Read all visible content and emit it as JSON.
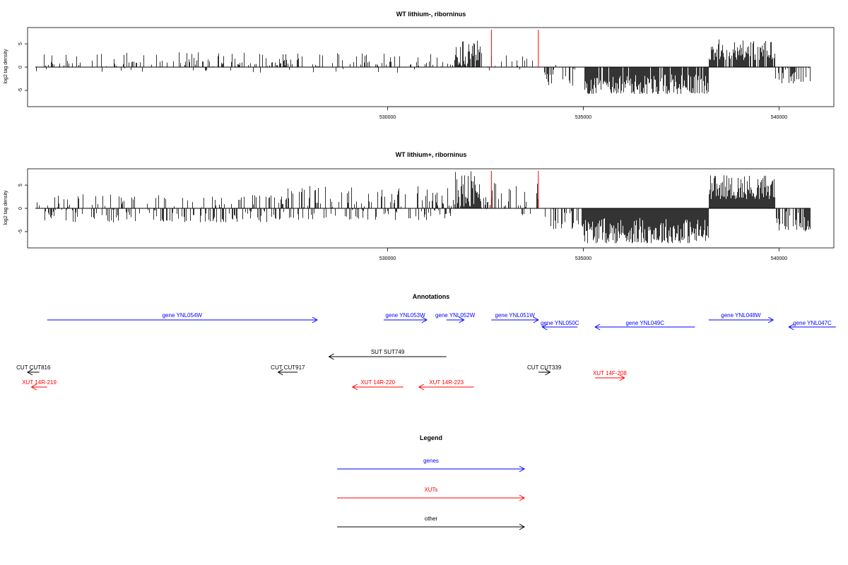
{
  "colors": {
    "gene": "#0000ff",
    "xut": "#ff0000",
    "other": "#000000",
    "marker": "#ff0000"
  },
  "chart_data": [
    {
      "type": "bar",
      "title": "WT lithium-, riborninus",
      "ylabel": "log2 tag density",
      "ylim": [
        -8.5,
        8.5
      ],
      "xlim": [
        520800,
        541400
      ],
      "yticks": [
        5,
        0,
        -5
      ],
      "xticks": [
        530000,
        535000,
        540000
      ],
      "xtick_labels": [
        "530000",
        "535000",
        "540000"
      ],
      "markers": [
        532650,
        533850
      ],
      "regions": [
        {
          "from": 521000,
          "to": 531700,
          "lo": -1.2,
          "hi": 3.2,
          "density": 0.28
        },
        {
          "from": 531700,
          "to": 532400,
          "lo": 0,
          "hi": 6.3,
          "density": 0.95
        },
        {
          "from": 532400,
          "to": 533900,
          "lo": -1,
          "hi": 2.8,
          "density": 0.15
        },
        {
          "from": 533900,
          "to": 535000,
          "lo": -4,
          "hi": 0.5,
          "density": 0.25
        },
        {
          "from": 535000,
          "to": 538200,
          "lo": -5.8,
          "hi": -1.5,
          "density": 0.9
        },
        {
          "from": 538200,
          "to": 539900,
          "lo": 1.5,
          "hi": 6,
          "density": 0.8
        },
        {
          "from": 539900,
          "to": 540800,
          "lo": -3.5,
          "hi": 0,
          "density": 0.45
        }
      ]
    },
    {
      "type": "bar",
      "title": "WT lithium+, riborninus",
      "ylabel": "log2 tag density",
      "ylim": [
        -8.5,
        8.5
      ],
      "xlim": [
        520800,
        541400
      ],
      "yticks": [
        5,
        0,
        -5
      ],
      "xticks": [
        530000,
        535000,
        540000
      ],
      "xtick_labels": [
        "530000",
        "535000",
        "540000"
      ],
      "markers": [
        532650,
        533850
      ],
      "regions": [
        {
          "from": 521000,
          "to": 527000,
          "lo": -3,
          "hi": 3,
          "density": 0.45
        },
        {
          "from": 527000,
          "to": 531700,
          "lo": -2.5,
          "hi": 5,
          "density": 0.55
        },
        {
          "from": 531700,
          "to": 532400,
          "lo": 0,
          "hi": 8,
          "density": 1
        },
        {
          "from": 532400,
          "to": 533900,
          "lo": -1.5,
          "hi": 5.5,
          "density": 0.35
        },
        {
          "from": 533900,
          "to": 535000,
          "lo": -4.5,
          "hi": 0.5,
          "density": 0.3
        },
        {
          "from": 535000,
          "to": 538200,
          "lo": -7.5,
          "hi": -2,
          "density": 1
        },
        {
          "from": 538200,
          "to": 539900,
          "lo": 2,
          "hi": 7.3,
          "density": 1
        },
        {
          "from": 539900,
          "to": 540800,
          "lo": -5,
          "hi": -0.5,
          "density": 0.6
        }
      ]
    }
  ],
  "annotations": {
    "title": "Annotations",
    "features": [
      {
        "label": "gene YNL054W",
        "type": "gene",
        "dir": "right",
        "x1": 521300,
        "x2": 528200,
        "row": 0
      },
      {
        "label": "gene YNL053W",
        "type": "gene",
        "dir": "right",
        "x1": 529900,
        "x2": 531000,
        "row": 0
      },
      {
        "label": "gene YNL052W",
        "type": "gene",
        "dir": "right",
        "x1": 531500,
        "x2": 531950,
        "row": 0
      },
      {
        "label": "gene YNL051W",
        "type": "gene",
        "dir": "right",
        "x1": 532650,
        "x2": 533850,
        "row": 0
      },
      {
        "label": "gene YNL050C",
        "type": "gene",
        "dir": "left",
        "x1": 533950,
        "x2": 534850,
        "row": 1
      },
      {
        "label": "gene YNL049C",
        "type": "gene",
        "dir": "left",
        "x1": 535300,
        "x2": 537850,
        "row": 1
      },
      {
        "label": "gene YNL048W",
        "type": "gene",
        "dir": "right",
        "x1": 538200,
        "x2": 539850,
        "row": 0
      },
      {
        "label": "gene YNL047C",
        "type": "gene",
        "dir": "left",
        "x1": 540250,
        "x2": 541450,
        "row": 1
      },
      {
        "label": "SUT SUT749",
        "type": "other",
        "dir": "left",
        "x1": 528500,
        "x2": 531500,
        "row": 3
      },
      {
        "label": "CUT CUT816",
        "type": "other",
        "dir": "left",
        "x1": 520800,
        "x2": 521100,
        "row": 4
      },
      {
        "label": "CUT CUT917",
        "type": "other",
        "dir": "left",
        "x1": 527200,
        "x2": 527700,
        "row": 4
      },
      {
        "label": "CUT CUT339",
        "type": "other",
        "dir": "right",
        "x1": 533850,
        "x2": 534150,
        "row": 4
      },
      {
        "label": "XUT 14R-219",
        "type": "xut",
        "dir": "left",
        "x1": 520900,
        "x2": 521300,
        "row": 5
      },
      {
        "label": "XUT 14R-220",
        "type": "xut",
        "dir": "left",
        "x1": 529100,
        "x2": 530400,
        "row": 5
      },
      {
        "label": "XUT 14R-223",
        "type": "xut",
        "dir": "left",
        "x1": 530800,
        "x2": 532200,
        "row": 5
      },
      {
        "label": "XUT 14F-208",
        "type": "xut",
        "dir": "right",
        "x1": 535300,
        "x2": 536050,
        "row": 6
      }
    ]
  },
  "legend": {
    "title": "Legend",
    "items": [
      {
        "label": "genes",
        "type": "gene"
      },
      {
        "label": "XUTs",
        "type": "xut"
      },
      {
        "label": "other",
        "type": "other"
      }
    ]
  }
}
